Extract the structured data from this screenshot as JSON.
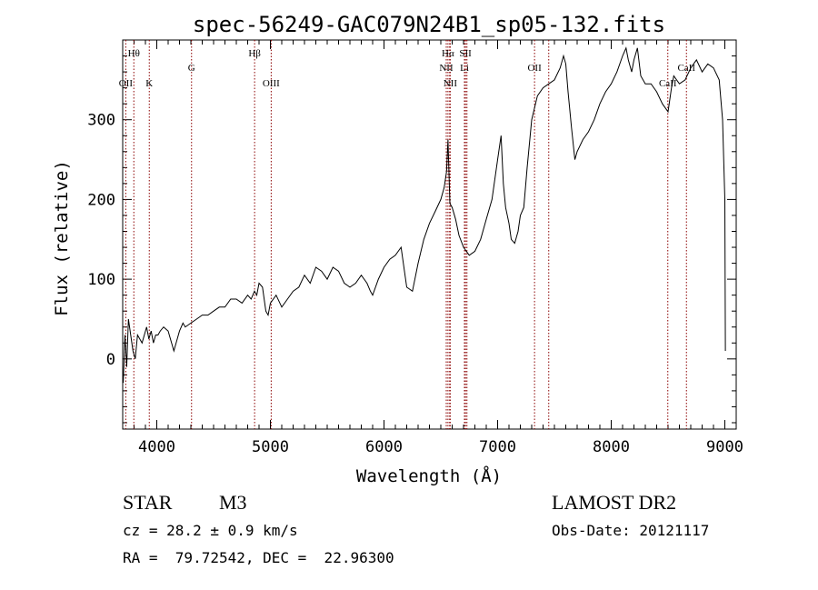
{
  "chart_data": {
    "type": "line",
    "title": "spec-56249-GAC079N24B1_sp05-132.fits",
    "xlabel": "Wavelength (Å)",
    "ylabel": "Flux (relative)",
    "xlim": [
      3700,
      9100
    ],
    "ylim": [
      -88,
      400
    ],
    "xticks": [
      4000,
      5000,
      6000,
      7000,
      8000,
      9000
    ],
    "yticks": [
      0,
      100,
      200,
      300
    ],
    "colors": {
      "spectrum": "#000000",
      "lines": "#8b0000"
    },
    "series": [
      {
        "x": [
          3705,
          3720,
          3735,
          3750,
          3770,
          3790,
          3810,
          3830,
          3850,
          3870,
          3890,
          3910,
          3930,
          3950,
          3970,
          3990,
          4010,
          4030,
          4060,
          4100,
          4150,
          4200,
          4230,
          4250,
          4270,
          4300,
          4350,
          4400,
          4450,
          4500,
          4550,
          4600,
          4650,
          4700,
          4750,
          4800,
          4830,
          4860,
          4880,
          4900,
          4930,
          4960,
          4980,
          5000,
          5050,
          5100,
          5150,
          5200,
          5250,
          5300,
          5350,
          5400,
          5450,
          5500,
          5550,
          5600,
          5650,
          5700,
          5750,
          5800,
          5850,
          5880,
          5900,
          5950,
          6000,
          6050,
          6100,
          6150,
          6180,
          6200,
          6250,
          6300,
          6350,
          6400,
          6450,
          6500,
          6530,
          6550,
          6563,
          6580,
          6600,
          6630,
          6660,
          6700,
          6750,
          6800,
          6850,
          6900,
          6950,
          7000,
          7030,
          7050,
          7070,
          7100,
          7120,
          7150,
          7180,
          7200,
          7230,
          7260,
          7300,
          7350,
          7400,
          7450,
          7500,
          7550,
          7580,
          7600,
          7620,
          7650,
          7680,
          7700,
          7750,
          7800,
          7850,
          7900,
          7950,
          8000,
          8050,
          8100,
          8130,
          8150,
          8180,
          8200,
          8230,
          8260,
          8300,
          8350,
          8400,
          8450,
          8500,
          8530,
          8550,
          8600,
          8650,
          8700,
          8750,
          8800,
          8850,
          8900,
          8950,
          8980,
          9000,
          9005
        ],
        "values": [
          -30,
          30,
          -10,
          50,
          30,
          10,
          0,
          30,
          25,
          20,
          30,
          40,
          25,
          35,
          20,
          30,
          30,
          35,
          40,
          35,
          10,
          35,
          45,
          40,
          42,
          45,
          50,
          55,
          55,
          60,
          65,
          65,
          75,
          75,
          70,
          80,
          75,
          85,
          80,
          95,
          90,
          60,
          55,
          70,
          80,
          65,
          75,
          85,
          90,
          105,
          95,
          115,
          110,
          100,
          115,
          110,
          95,
          90,
          95,
          105,
          95,
          85,
          80,
          100,
          115,
          125,
          130,
          140,
          110,
          90,
          85,
          120,
          150,
          170,
          185,
          200,
          215,
          235,
          275,
          195,
          190,
          175,
          155,
          140,
          130,
          135,
          150,
          175,
          200,
          250,
          280,
          220,
          190,
          170,
          150,
          145,
          160,
          180,
          190,
          240,
          300,
          330,
          340,
          345,
          350,
          365,
          380,
          370,
          335,
          290,
          250,
          260,
          275,
          285,
          300,
          320,
          335,
          345,
          360,
          380,
          390,
          375,
          360,
          375,
          390,
          355,
          345,
          345,
          335,
          320,
          310,
          340,
          355,
          345,
          350,
          365,
          375,
          360,
          370,
          365,
          350,
          300,
          200,
          10
        ]
      }
    ],
    "lines": [
      {
        "name": "Hθ",
        "x": 3798,
        "row": 1
      },
      {
        "name": "OII",
        "x": 3727,
        "row": 3
      },
      {
        "name": "K",
        "x": 3934,
        "row": 3
      },
      {
        "name": "G",
        "x": 4306,
        "row": 2
      },
      {
        "name": "Hβ",
        "x": 4861,
        "row": 1
      },
      {
        "name": "OIII",
        "x": 5007,
        "row": 3
      },
      {
        "name": "Hα",
        "x": 6563,
        "row": 1
      },
      {
        "name": "SII",
        "x": 6717,
        "row": 1
      },
      {
        "name": "NII",
        "x": 6548,
        "row": 2
      },
      {
        "name": "Li",
        "x": 6708,
        "row": 2
      },
      {
        "name": "NII",
        "x": 6583,
        "row": 3
      },
      {
        "name": "OII",
        "x": 7325,
        "row": 2
      },
      {
        "name": "CaII",
        "x": 8498,
        "row": 3
      },
      {
        "name": "CaII",
        "x": 8662,
        "row": 2
      }
    ],
    "extra_lines_x": [
      6578,
      7450,
      6730
    ]
  },
  "info": {
    "class_label": "STAR",
    "subclass": "M3",
    "survey": "LAMOST DR2",
    "cz": "cz = 28.2 ± 0.9 km/s",
    "obs_date": "Obs-Date: 20121117",
    "coords": "RA =  79.72542, DEC =  22.96300"
  }
}
